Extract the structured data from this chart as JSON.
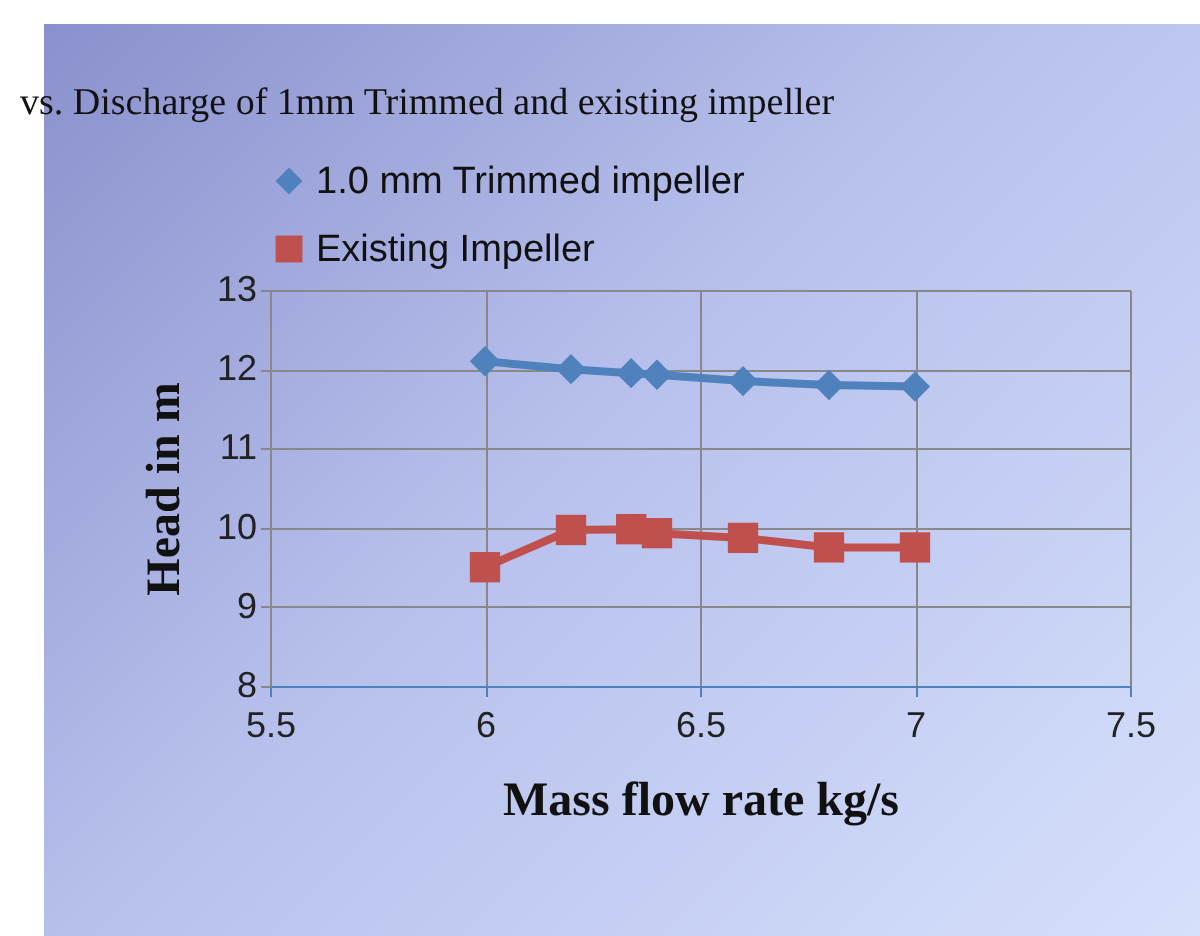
{
  "chart_data": {
    "type": "line",
    "title": "vs. Discharge of 1mm Trimmed and existing impeller",
    "xlabel": "Mass flow rate kg/s",
    "ylabel": "Head in m",
    "xlim": [
      5.5,
      7.5
    ],
    "xticks": [
      5.5,
      {
        "value": 6,
        "label": "6"
      },
      6.5,
      {
        "value": 7,
        "label": "7"
      },
      7.5
    ],
    "ylim": [
      8,
      13
    ],
    "yticks": [
      8,
      9,
      10,
      11,
      12,
      13
    ],
    "grid": true,
    "legend": "top",
    "line_style": "solid",
    "series": [
      {
        "name": "1.0 mm Trimmed impeller",
        "color": "#4f81bd",
        "marker": "diamond",
        "x": [
          6,
          6.2,
          6.34,
          6.4,
          6.6,
          6.8,
          7
        ],
        "values": [
          12.1,
          12.0,
          11.95,
          11.93,
          11.85,
          11.8,
          11.78
        ]
      },
      {
        "name": "Existing Impeller",
        "color": "#c0504d",
        "marker": "square",
        "x": [
          6,
          6.2,
          6.34,
          6.4,
          6.6,
          6.8,
          7
        ],
        "values": [
          9.5,
          9.97,
          9.98,
          9.93,
          9.87,
          9.75,
          9.75
        ]
      }
    ]
  }
}
